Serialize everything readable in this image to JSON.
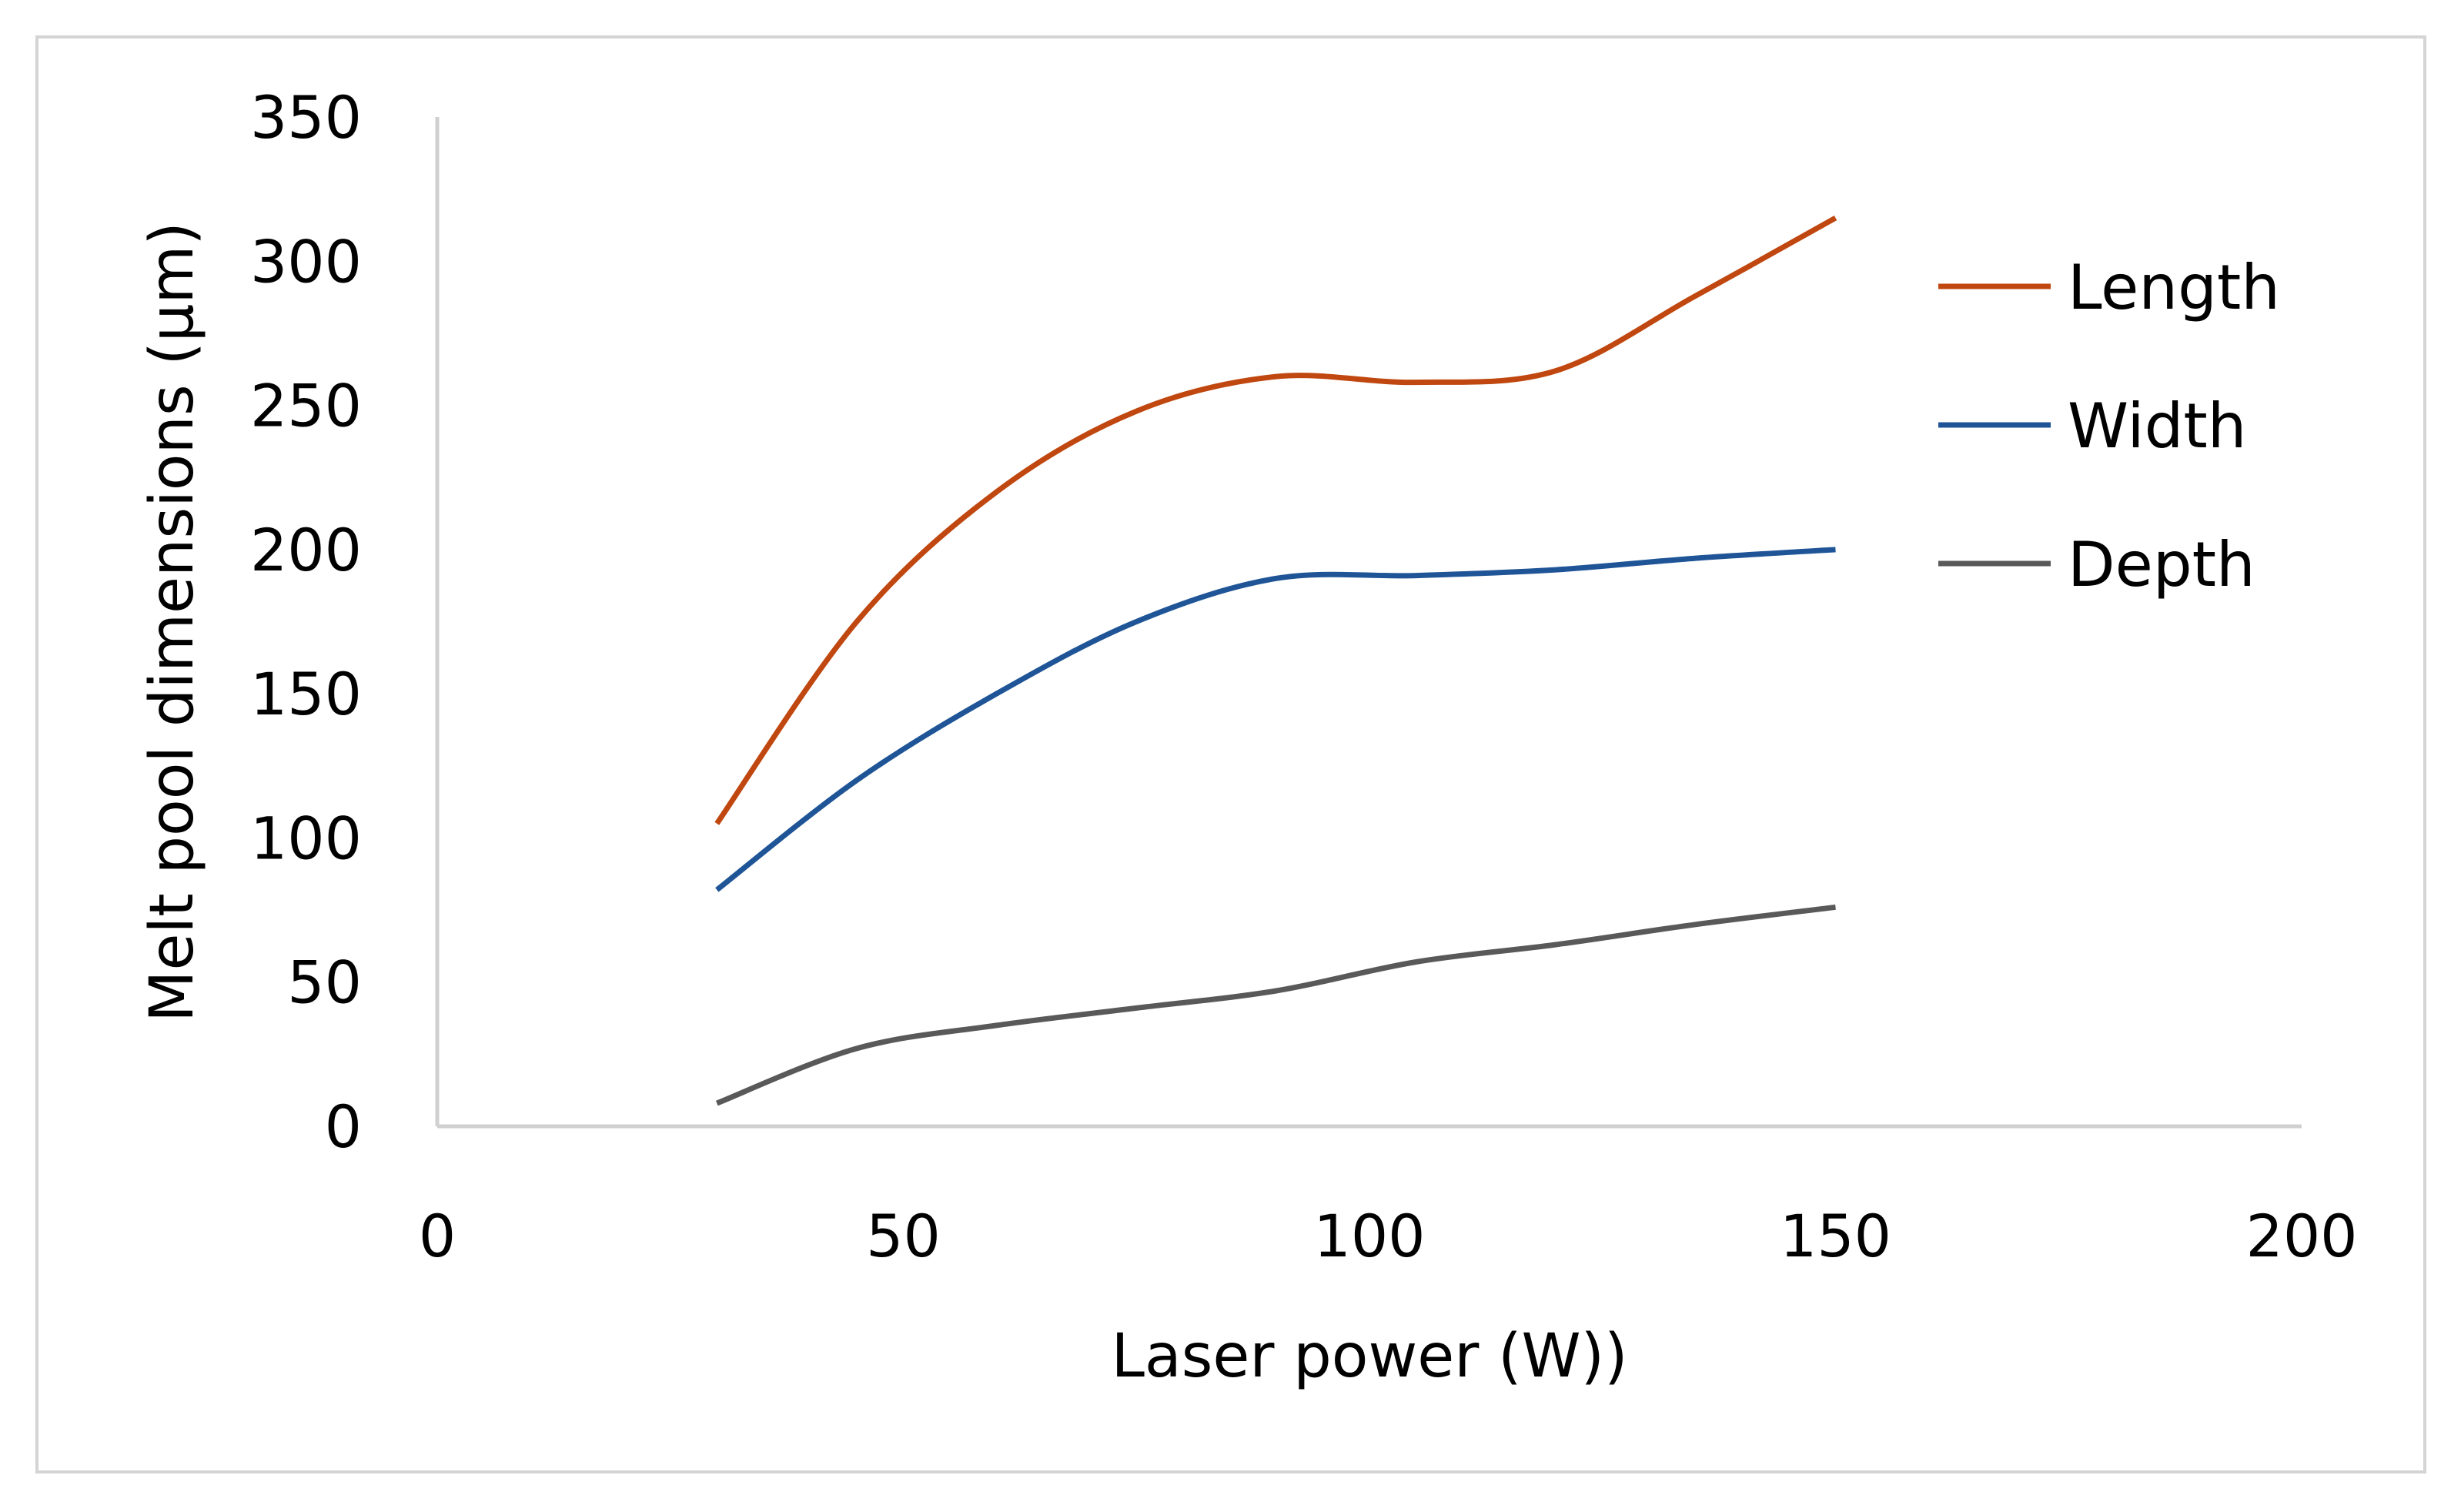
{
  "chart_data": {
    "type": "line",
    "title": "",
    "xlabel": "Laser power (W))",
    "ylabel": "Melt pool dimensions (µm)",
    "xlim": [
      0,
      200
    ],
    "ylim": [
      0,
      350
    ],
    "xticks": [
      0,
      50,
      100,
      150,
      200
    ],
    "yticks": [
      0,
      50,
      100,
      150,
      200,
      250,
      300,
      350
    ],
    "x_tick_labels": [
      "0",
      "50",
      "100",
      "150",
      "200"
    ],
    "y_tick_labels": [
      "0",
      "50",
      "100",
      "150",
      "200",
      "250",
      "300",
      "350"
    ],
    "grid": false,
    "legend_position": "right",
    "smooth": true,
    "series": [
      {
        "name": "Length",
        "color": "#c0470f",
        "x": [
          30,
          45,
          60,
          75,
          90,
          105,
          120,
          135,
          150
        ],
        "y": [
          105,
          175,
          220,
          248,
          260,
          258,
          262,
          288,
          315
        ]
      },
      {
        "name": "Width",
        "color": "#1f5597",
        "x": [
          30,
          45,
          60,
          75,
          90,
          105,
          120,
          135,
          150
        ],
        "y": [
          82,
          120,
          150,
          175,
          190,
          191,
          193,
          197,
          200
        ]
      },
      {
        "name": "Depth",
        "color": "#595959",
        "x": [
          30,
          45,
          60,
          75,
          90,
          105,
          120,
          135,
          150
        ],
        "y": [
          8,
          27,
          35,
          41,
          47,
          57,
          63,
          70,
          76
        ]
      }
    ]
  }
}
